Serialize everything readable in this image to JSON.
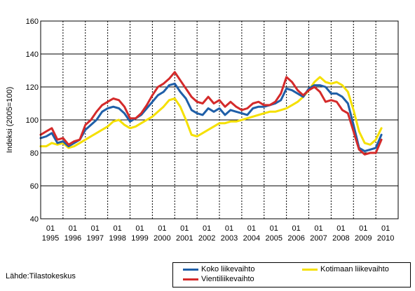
{
  "chart_data": {
    "type": "line",
    "title": "",
    "xlabel": "",
    "ylabel": "Indeksi (2005=100)",
    "ylim": [
      40,
      160
    ],
    "yticks": [
      "40",
      "60",
      "80",
      "100",
      "120",
      "140",
      "160"
    ],
    "xtick_years": [
      "1995",
      "1996",
      "1997",
      "1998",
      "1999",
      "2000",
      "2001",
      "2002",
      "2003",
      "2004",
      "2005",
      "2006",
      "2007",
      "2008",
      "2009",
      "2010"
    ],
    "xtick_month": "01",
    "grid": "horizontal solid, vertical dashed at each year",
    "legend_position": "bottom-right",
    "source": "Lähde:Tilastokeskus",
    "colors": {
      "koko": "#1f5fa8",
      "kotimaan": "#f5e000",
      "vienti": "#d42a2a"
    },
    "series": [
      {
        "name": "Koko liikevaihto",
        "color": "#1f5fa8",
        "points": [
          [
            1995.0,
            89
          ],
          [
            1995.25,
            90
          ],
          [
            1995.5,
            92
          ],
          [
            1995.75,
            86
          ],
          [
            1996.0,
            87
          ],
          [
            1996.25,
            84
          ],
          [
            1996.5,
            86
          ],
          [
            1996.75,
            88
          ],
          [
            1997.0,
            94
          ],
          [
            1997.25,
            97
          ],
          [
            1997.5,
            100
          ],
          [
            1997.75,
            105
          ],
          [
            1998.0,
            107
          ],
          [
            1998.25,
            108
          ],
          [
            1998.5,
            107
          ],
          [
            1998.75,
            104
          ],
          [
            1999.0,
            99
          ],
          [
            1999.25,
            101
          ],
          [
            1999.5,
            103
          ],
          [
            1999.75,
            107
          ],
          [
            2000.0,
            111
          ],
          [
            2000.25,
            115
          ],
          [
            2000.5,
            117
          ],
          [
            2000.75,
            121
          ],
          [
            2001.0,
            122
          ],
          [
            2001.25,
            117
          ],
          [
            2001.5,
            113
          ],
          [
            2001.75,
            106
          ],
          [
            2002.0,
            104
          ],
          [
            2002.25,
            103
          ],
          [
            2002.5,
            107
          ],
          [
            2002.75,
            105
          ],
          [
            2003.0,
            107
          ],
          [
            2003.25,
            103
          ],
          [
            2003.5,
            106
          ],
          [
            2003.75,
            105
          ],
          [
            2004.0,
            104
          ],
          [
            2004.25,
            103
          ],
          [
            2004.5,
            107
          ],
          [
            2004.75,
            108
          ],
          [
            2005.0,
            108
          ],
          [
            2005.25,
            109
          ],
          [
            2005.5,
            110
          ],
          [
            2005.75,
            112
          ],
          [
            2006.0,
            119
          ],
          [
            2006.25,
            118
          ],
          [
            2006.5,
            116
          ],
          [
            2006.75,
            114
          ],
          [
            2007.0,
            119
          ],
          [
            2007.25,
            121
          ],
          [
            2007.5,
            121
          ],
          [
            2007.75,
            120
          ],
          [
            2008.0,
            116
          ],
          [
            2008.25,
            116
          ],
          [
            2008.5,
            114
          ],
          [
            2008.75,
            110
          ],
          [
            2009.0,
            97
          ],
          [
            2009.25,
            83
          ],
          [
            2009.5,
            81
          ],
          [
            2009.75,
            82
          ],
          [
            2010.0,
            83
          ],
          [
            2010.25,
            91
          ]
        ]
      },
      {
        "name": "Kotimaan liikevaihto",
        "color": "#f5e000",
        "points": [
          [
            1995.0,
            84
          ],
          [
            1995.25,
            84
          ],
          [
            1995.5,
            86
          ],
          [
            1995.75,
            85
          ],
          [
            1996.0,
            86
          ],
          [
            1996.25,
            83
          ],
          [
            1996.5,
            84
          ],
          [
            1996.75,
            86
          ],
          [
            1997.0,
            88
          ],
          [
            1997.25,
            90
          ],
          [
            1997.5,
            92
          ],
          [
            1997.75,
            94
          ],
          [
            1998.0,
            96
          ],
          [
            1998.25,
            99
          ],
          [
            1998.5,
            100
          ],
          [
            1998.75,
            97
          ],
          [
            1999.0,
            95
          ],
          [
            1999.25,
            96
          ],
          [
            1999.5,
            98
          ],
          [
            1999.75,
            100
          ],
          [
            2000.0,
            102
          ],
          [
            2000.25,
            105
          ],
          [
            2000.5,
            108
          ],
          [
            2000.75,
            112
          ],
          [
            2001.0,
            113
          ],
          [
            2001.25,
            108
          ],
          [
            2001.5,
            100
          ],
          [
            2001.75,
            91
          ],
          [
            2002.0,
            90
          ],
          [
            2002.25,
            92
          ],
          [
            2002.5,
            94
          ],
          [
            2002.75,
            96
          ],
          [
            2003.0,
            98
          ],
          [
            2003.25,
            98
          ],
          [
            2003.5,
            99
          ],
          [
            2003.75,
            99
          ],
          [
            2004.0,
            100
          ],
          [
            2004.25,
            101
          ],
          [
            2004.5,
            102
          ],
          [
            2004.75,
            103
          ],
          [
            2005.0,
            104
          ],
          [
            2005.25,
            105
          ],
          [
            2005.5,
            105
          ],
          [
            2005.75,
            106
          ],
          [
            2006.0,
            107
          ],
          [
            2006.25,
            109
          ],
          [
            2006.5,
            111
          ],
          [
            2006.75,
            114
          ],
          [
            2007.0,
            118
          ],
          [
            2007.25,
            123
          ],
          [
            2007.5,
            126
          ],
          [
            2007.75,
            123
          ],
          [
            2008.0,
            122
          ],
          [
            2008.25,
            123
          ],
          [
            2008.5,
            121
          ],
          [
            2008.75,
            117
          ],
          [
            2009.0,
            106
          ],
          [
            2009.25,
            93
          ],
          [
            2009.5,
            86
          ],
          [
            2009.75,
            85
          ],
          [
            2010.0,
            88
          ],
          [
            2010.25,
            95
          ]
        ]
      },
      {
        "name": "Vientiliikevaihto",
        "color": "#d42a2a",
        "points": [
          [
            1995.0,
            91
          ],
          [
            1995.25,
            93
          ],
          [
            1995.5,
            95
          ],
          [
            1995.75,
            88
          ],
          [
            1996.0,
            89
          ],
          [
            1996.25,
            85
          ],
          [
            1996.5,
            87
          ],
          [
            1996.75,
            88
          ],
          [
            1997.0,
            97
          ],
          [
            1997.25,
            100
          ],
          [
            1997.5,
            105
          ],
          [
            1997.75,
            109
          ],
          [
            1998.0,
            111
          ],
          [
            1998.25,
            113
          ],
          [
            1998.5,
            112
          ],
          [
            1998.75,
            108
          ],
          [
            1999.0,
            101
          ],
          [
            1999.25,
            101
          ],
          [
            1999.5,
            104
          ],
          [
            1999.75,
            109
          ],
          [
            2000.0,
            115
          ],
          [
            2000.25,
            120
          ],
          [
            2000.5,
            122
          ],
          [
            2000.75,
            125
          ],
          [
            2001.0,
            129
          ],
          [
            2001.25,
            124
          ],
          [
            2001.5,
            119
          ],
          [
            2001.75,
            114
          ],
          [
            2002.0,
            111
          ],
          [
            2002.25,
            110
          ],
          [
            2002.5,
            114
          ],
          [
            2002.75,
            110
          ],
          [
            2003.0,
            112
          ],
          [
            2003.25,
            108
          ],
          [
            2003.5,
            111
          ],
          [
            2003.75,
            108
          ],
          [
            2004.0,
            106
          ],
          [
            2004.25,
            107
          ],
          [
            2004.5,
            110
          ],
          [
            2004.75,
            111
          ],
          [
            2005.0,
            109
          ],
          [
            2005.25,
            109
          ],
          [
            2005.5,
            111
          ],
          [
            2005.75,
            116
          ],
          [
            2006.0,
            126
          ],
          [
            2006.25,
            123
          ],
          [
            2006.5,
            118
          ],
          [
            2006.75,
            115
          ],
          [
            2007.0,
            118
          ],
          [
            2007.25,
            120
          ],
          [
            2007.5,
            117
          ],
          [
            2007.75,
            111
          ],
          [
            2008.0,
            112
          ],
          [
            2008.25,
            111
          ],
          [
            2008.5,
            106
          ],
          [
            2008.75,
            104
          ],
          [
            2009.0,
            93
          ],
          [
            2009.25,
            82
          ],
          [
            2009.5,
            79
          ],
          [
            2009.75,
            80
          ],
          [
            2010.0,
            80
          ],
          [
            2010.25,
            88
          ]
        ]
      }
    ]
  }
}
